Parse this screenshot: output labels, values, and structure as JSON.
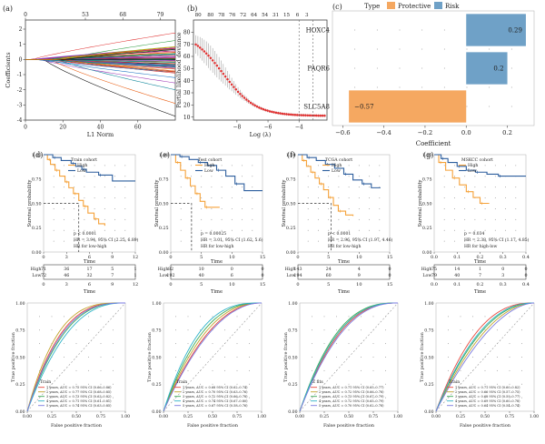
{
  "chart_data": [
    {
      "panel": "(a)",
      "type": "line",
      "xlabel": "L1 Norm",
      "ylabel": "Coefficients",
      "xlim": [
        0,
        80
      ],
      "ylim": [
        -4,
        2.6
      ],
      "x_ticks": [
        0,
        20,
        40,
        60
      ],
      "y_ticks": [
        -4,
        -3,
        -2,
        -1,
        0,
        1,
        2
      ],
      "top_ticks": [
        "0",
        "53",
        "68",
        "79"
      ],
      "top_tick_x": [
        0,
        32,
        52,
        72
      ]
    },
    {
      "panel": "(b)",
      "type": "scatter",
      "xlabel": "Log (λ)",
      "ylabel": "Partial likelihood deviance",
      "xlim": [
        -10.8,
        -2.2
      ],
      "ylim": [
        7.5,
        90
      ],
      "x_ticks": [
        -8,
        -6,
        -4
      ],
      "y_ticks": [
        10,
        20,
        30,
        40,
        50,
        60,
        70,
        80
      ],
      "top_ticks": [
        "80",
        "80",
        "78",
        "76",
        "72",
        "64",
        "54",
        "31",
        "15",
        "6",
        "3"
      ],
      "top_tick_x": [
        -10.5,
        -9.7,
        -9.0,
        -8.3,
        -7.6,
        -6.9,
        -6.2,
        -5.5,
        -4.8,
        -4.1,
        -3.5
      ],
      "vlines": [
        -4.0,
        -3.1
      ],
      "curve": {
        "start": 81,
        "floor": 11,
        "center": -8.9,
        "width": 1.05
      }
    },
    {
      "panel": "(c)",
      "type": "bar",
      "title": "",
      "xlabel": "Coefficient",
      "ylabel": "",
      "legend_title": "Type",
      "legend": [
        {
          "name": "Protective",
          "color": "#f5a861"
        },
        {
          "name": "Risk",
          "color": "#6fa1c7"
        }
      ],
      "categories": [
        "HOXC4",
        "PAQR6",
        "SLC5A8"
      ],
      "values": [
        0.29,
        0.2,
        -0.57
      ],
      "value_labels": [
        "0.29",
        "0.2",
        "−0.57"
      ],
      "xlim": [
        -0.65,
        0.33
      ],
      "x_ticks": [
        -0.6,
        -0.4,
        -0.2,
        0.0,
        0.2
      ],
      "x_tick_labels": [
        "−0.6",
        "−0.4",
        "−0.2",
        "0.0",
        "0.2"
      ]
    },
    {
      "panel": "(d)",
      "type": "line",
      "xlabel": "Time",
      "ylabel": "Survival probability",
      "xlim": [
        0,
        12
      ],
      "ylim": [
        0,
        1
      ],
      "x_ticks": [
        0,
        3,
        6,
        9,
        12
      ],
      "y_ticks": [
        0,
        0.25,
        0.5,
        0.75,
        1
      ],
      "y_tick_labels": [
        "0.00",
        "0.25",
        "0.50",
        "0.75",
        "1.00"
      ],
      "legend_title": "Train cohort",
      "series": [
        {
          "name": "High",
          "color": "#f5a23a",
          "x": [
            0,
            0.5,
            0.9,
            1.5,
            2.1,
            2.8,
            3.3,
            3.9,
            4.6,
            5.2,
            5.8,
            6.6,
            7.2,
            8.0
          ],
          "y": [
            1,
            0.95,
            0.9,
            0.84,
            0.78,
            0.72,
            0.66,
            0.6,
            0.53,
            0.47,
            0.4,
            0.34,
            0.29,
            0.27
          ]
        },
        {
          "name": "Low",
          "color": "#2e5f9e",
          "x": [
            0,
            1.2,
            2.3,
            3.6,
            4.2,
            5.0,
            5.6,
            7.2,
            9.0,
            12.0
          ],
          "y": [
            1,
            0.97,
            0.94,
            0.91,
            0.88,
            0.85,
            0.82,
            0.79,
            0.73,
            0.73
          ]
        }
      ],
      "median_x": 4.6,
      "stats": [
        "p < 0.0001",
        "HR = 3.94, 95% CI (2.25, 6.89)",
        "HR for low-high"
      ],
      "risk_table": {
        "labels": [
          "High",
          "Low"
        ],
        "rows": [
          [
            "71",
            "36",
            "17",
            "5",
            "1"
          ],
          [
            "72",
            "46",
            "32",
            "7",
            "1"
          ]
        ],
        "xlabel": "Time"
      }
    },
    {
      "panel": "(e)",
      "type": "line",
      "xlabel": "Time",
      "ylabel": "Survival probability",
      "xlim": [
        0,
        15
      ],
      "ylim": [
        0,
        1
      ],
      "x_ticks": [
        0,
        5,
        10,
        15
      ],
      "y_ticks": [
        0,
        0.25,
        0.5,
        0.75,
        1
      ],
      "y_tick_labels": [
        "0.00",
        "0.25",
        "0.50",
        "0.75",
        "1.00"
      ],
      "legend_title": "Test cohort",
      "series": [
        {
          "name": "High",
          "color": "#f5a23a",
          "x": [
            0,
            0.8,
            1.6,
            2.4,
            3.2,
            4.0,
            4.8,
            5.6,
            8.0
          ],
          "y": [
            1,
            0.92,
            0.84,
            0.76,
            0.68,
            0.6,
            0.52,
            0.46,
            0.46
          ]
        },
        {
          "name": "Low",
          "color": "#2e5f9e",
          "x": [
            0,
            1.5,
            3.0,
            4.5,
            6.0,
            7.5,
            9.0,
            10.5,
            12.0,
            15.0
          ],
          "y": [
            1,
            0.98,
            0.95,
            0.92,
            0.89,
            0.84,
            0.78,
            0.7,
            0.63,
            0.63
          ]
        }
      ],
      "median_x": 3.4,
      "stats": [
        "p = 0.00025",
        "HR = 3.01, 95% CI (1.62, 5.6)",
        "HR for low-high"
      ],
      "risk_table": {
        "labels": [
          "High",
          "Low"
        ],
        "rows": [
          [
            "82",
            "10",
            "0",
            "0"
          ],
          [
            "192",
            "40",
            "6",
            "0"
          ]
        ],
        "xlabel": "Time"
      }
    },
    {
      "panel": "(f)",
      "type": "line",
      "xlabel": "Time",
      "ylabel": "Survival probability",
      "xlim": [
        0,
        15
      ],
      "ylim": [
        0,
        1
      ],
      "x_ticks": [
        0,
        5,
        10,
        15
      ],
      "y_ticks": [
        0,
        0.25,
        0.5,
        0.75,
        1
      ],
      "y_tick_labels": [
        "0.00",
        "0.25",
        "0.50",
        "0.75",
        "1.00"
      ],
      "legend_title": "TCGA cohort",
      "series": [
        {
          "name": "High",
          "color": "#f5a23a",
          "x": [
            0,
            0.7,
            1.4,
            2.1,
            2.8,
            3.5,
            4.2,
            5.0,
            5.8,
            6.6,
            7.8,
            9.0
          ],
          "y": [
            1,
            0.94,
            0.88,
            0.82,
            0.76,
            0.7,
            0.64,
            0.56,
            0.48,
            0.42,
            0.38,
            0.37
          ]
        },
        {
          "name": "Low",
          "color": "#2e5f9e",
          "x": [
            0,
            1.5,
            3.0,
            4.5,
            6.0,
            7.5,
            9.0,
            10.5,
            12.0,
            13.5
          ],
          "y": [
            1,
            0.97,
            0.94,
            0.9,
            0.86,
            0.8,
            0.74,
            0.7,
            0.66,
            0.66
          ]
        }
      ],
      "median_x": 5.4,
      "stats": [
        "p < 0.0001",
        "HR = 2.96, 95% CI (1.97, 4.46)",
        "HR for low-high"
      ],
      "risk_table": {
        "labels": [
          "High",
          "Low"
        ],
        "rows": [
          [
            "143",
            "24",
            "4",
            "0"
          ],
          [
            "194",
            "60",
            "9",
            "0"
          ]
        ],
        "xlabel": "Time"
      }
    },
    {
      "panel": "(g)",
      "type": "line",
      "xlabel": "Time",
      "ylabel": "Survival probability",
      "xlim": [
        0,
        0.4
      ],
      "ylim": [
        0,
        1
      ],
      "x_ticks": [
        0,
        0.1,
        0.2,
        0.3,
        0.4
      ],
      "y_ticks": [
        0,
        0.25,
        0.5,
        0.75,
        1
      ],
      "x_tick_labels": [
        "0.0",
        "0.1",
        "0.2",
        "0.3",
        "0.4"
      ],
      "y_tick_labels": [
        "0.00",
        "0.25",
        "0.50",
        "0.75",
        "1.00"
      ],
      "legend_title": "MSKCC cohort",
      "series": [
        {
          "name": "High",
          "color": "#f5a23a",
          "x": [
            0,
            0.02,
            0.05,
            0.08,
            0.11,
            0.14,
            0.17,
            0.2,
            0.24
          ],
          "y": [
            1,
            0.92,
            0.84,
            0.76,
            0.69,
            0.62,
            0.56,
            0.5,
            0.5
          ]
        },
        {
          "name": "Low",
          "color": "#2e5f9e",
          "x": [
            0,
            0.03,
            0.06,
            0.1,
            0.14,
            0.18,
            0.23,
            0.28,
            0.4
          ],
          "y": [
            1,
            0.96,
            0.92,
            0.88,
            0.84,
            0.82,
            0.8,
            0.78,
            0.78
          ]
        }
      ],
      "median_x": null,
      "stats": [
        "p = 0.034",
        "HR = 2.38, 95% CI (1.17, 4.85)",
        "HR for high-low"
      ],
      "risk_table": {
        "labels": [
          "High",
          "Low"
        ],
        "rows": [
          [
            "75",
            "14",
            "1",
            "0",
            "0"
          ],
          [
            "79",
            "40",
            "7",
            "3",
            "0"
          ]
        ],
        "xlabel": "Time"
      }
    },
    {
      "panel": "",
      "type": "line",
      "xlabel": "False positive fraction",
      "ylabel": "True positive fraction",
      "xlim": [
        0,
        1
      ],
      "ylim": [
        0,
        1
      ],
      "x_ticks": [
        0,
        0.25,
        0.5,
        0.75,
        1
      ],
      "y_ticks": [
        0,
        0.25,
        0.5,
        0.75,
        1
      ],
      "x_tick_labels": [
        "0.00",
        "0.25",
        "0.50",
        "0.75",
        "1.00"
      ],
      "y_tick_labels": [
        "0.00",
        "0.25",
        "0.50",
        "0.75",
        "1.00"
      ],
      "legend_title": "Train",
      "series": [
        {
          "name": "1 years, AUC = 0.75 95% CI (0.66–0.86)",
          "color": "#e8473c",
          "auc": 0.75
        },
        {
          "name": "2 years, AUC = 0.77 95% CI (0.68–0.85)",
          "color": "#c2a32a",
          "auc": 0.77
        },
        {
          "name": "3 years, AUC = 0.73 95% CI (0.63–0.82)",
          "color": "#3cab58",
          "auc": 0.73
        },
        {
          "name": "4 years, AUC = 0.71 95% CI (0.61–0.81)",
          "color": "#2fb3c8",
          "auc": 0.71
        },
        {
          "name": "5 years, AUC = 0.74 95% CI (0.63–0.85)",
          "color": "#7a7ae0",
          "auc": 0.74
        }
      ]
    },
    {
      "panel": "",
      "type": "line",
      "xlabel": "False positive fraction",
      "ylabel": "True positive fraction",
      "xlim": [
        0,
        1
      ],
      "ylim": [
        0,
        1
      ],
      "x_ticks": [
        0,
        0.25,
        0.5,
        0.75,
        1
      ],
      "y_ticks": [
        0,
        0.25,
        0.5,
        0.75,
        1
      ],
      "x_tick_labels": [
        "0.00",
        "0.25",
        "0.50",
        "0.75",
        "1.00"
      ],
      "y_tick_labels": [
        "0.00",
        "0.25",
        "0.50",
        "0.75",
        "1.00"
      ],
      "legend_title": "Train",
      "series": [
        {
          "name": "1 years, AUC = 0.68 95% CI (0.62–0.74)",
          "color": "#e8473c",
          "auc": 0.68
        },
        {
          "name": "2 years, AUC = 0.70 95% CI (0.63–0.76)",
          "color": "#c2a32a",
          "auc": 0.7
        },
        {
          "name": "3 years, AUC = 0.72 95% CI (0.66–0.78)",
          "color": "#3cab58",
          "auc": 0.72
        },
        {
          "name": "4 years, AUC = 0.74 95% CI (0.67–0.80)",
          "color": "#2fb3c8",
          "auc": 0.74
        },
        {
          "name": "5 years, AUC = 0.67 95% CI (0.58–0.76)",
          "color": "#7a7ae0",
          "auc": 0.67
        }
      ]
    },
    {
      "panel": "",
      "type": "line",
      "xlabel": "False positive fraction",
      "ylabel": "True positive fraction",
      "xlim": [
        0,
        1
      ],
      "ylim": [
        0,
        1
      ],
      "x_ticks": [
        0,
        0.25,
        0.5,
        0.75,
        1
      ],
      "y_ticks": [
        0,
        0.25,
        0.5,
        0.75,
        1
      ],
      "x_tick_labels": [
        "0.00",
        "0.25",
        "0.50",
        "0.75",
        "1.00"
      ],
      "y_tick_labels": [
        "0.00",
        "0.25",
        "0.50",
        "0.75",
        "1.00"
      ],
      "legend_title": "Z fits",
      "series": [
        {
          "name": "1 years, AUC = 0.71 95% CI (0.65–0.77)",
          "color": "#e8473c",
          "auc": 0.71
        },
        {
          "name": "2 years, AUC = 0.72 95% CI (0.66–0.78)",
          "color": "#c2a32a",
          "auc": 0.72
        },
        {
          "name": "3 years, AUC = 0.73 95% CI (0.67–0.79)",
          "color": "#3cab58",
          "auc": 0.73
        },
        {
          "name": "4 years, AUC = 0.72 95% CI (0.65–0.79)",
          "color": "#2fb3c8",
          "auc": 0.72
        },
        {
          "name": "5 years, AUC = 0.70 95% CI (0.62–0.78)",
          "color": "#7a7ae0",
          "auc": 0.7
        }
      ]
    },
    {
      "panel": "",
      "type": "line",
      "xlabel": "False positive fraction",
      "ylabel": "True positive fraction",
      "xlim": [
        0,
        1
      ],
      "ylim": [
        0,
        1
      ],
      "x_ticks": [
        0,
        0.25,
        0.5,
        0.75,
        1
      ],
      "y_ticks": [
        0,
        0.25,
        0.5,
        0.75,
        1
      ],
      "x_tick_labels": [
        "0.00",
        "0.25",
        "0.50",
        "0.75",
        "1.00"
      ],
      "y_tick_labels": [
        "0.00",
        "0.25",
        "0.50",
        "0.75",
        "1.00"
      ],
      "legend_title": "Train",
      "series": [
        {
          "name": "1 years, AUC = 0.71 95% CI (0.60–0.82)",
          "color": "#e8473c",
          "auc": 0.71
        },
        {
          "name": "2 years, AUC = 0.66 95% CI (0.57–0.75)",
          "color": "#c2a32a",
          "auc": 0.66
        },
        {
          "name": "3 years, AUC = 0.68 95% CI (0.59–0.77)",
          "color": "#3cab58",
          "auc": 0.68
        },
        {
          "name": "4 years, AUC = 0.69 95% CI (0.60–0.78)",
          "color": "#2fb3c8",
          "auc": 0.69
        },
        {
          "name": "5 years, AUC = 0.64 95% CI (0.54–0.74)",
          "color": "#7a7ae0",
          "auc": 0.64
        }
      ]
    }
  ]
}
